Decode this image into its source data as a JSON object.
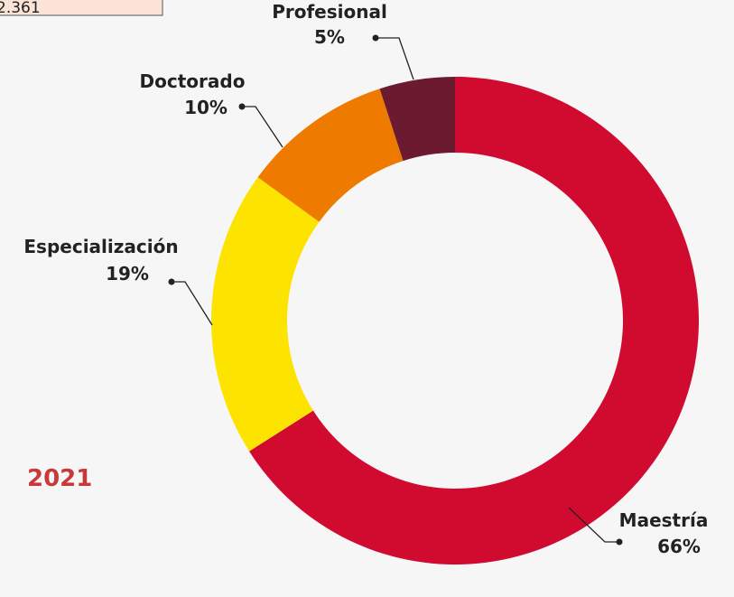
{
  "chart_data": {
    "type": "donut",
    "categories": [
      "Maestría",
      "Especialización",
      "Doctorado",
      "Profesional"
    ],
    "values": [
      66,
      19,
      10,
      5
    ],
    "value_labels": [
      "66%",
      "19%",
      "10%",
      "5%"
    ],
    "colors": [
      "#d10a2f",
      "#fde300",
      "#ee7a00",
      "#6b1a30"
    ],
    "annotations": [
      "2.361",
      "2021"
    ]
  }
}
